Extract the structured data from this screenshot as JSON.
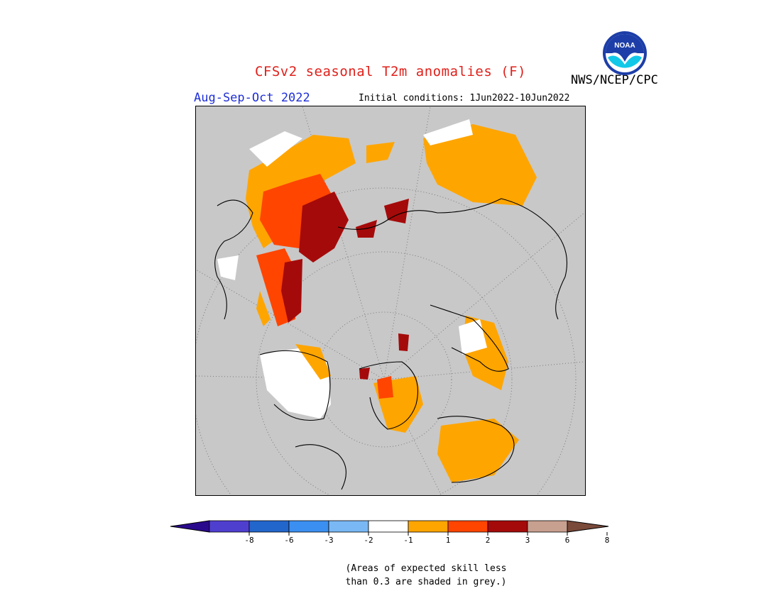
{
  "header": {
    "title": "CFSv2 seasonal T2m anomalies (F)",
    "season": "Aug-Sep-Oct 2022",
    "initial_conditions": "Initial conditions: 1Jun2022-10Jun2022",
    "agency": "NWS/NCEP/CPC",
    "logo_text": "NOAA"
  },
  "colorbar": {
    "colors": [
      "#2a0a8c",
      "#4f3fcf",
      "#2266cc",
      "#3b8ff0",
      "#7ab8f5",
      "#ffffff",
      "#ffa500",
      "#ff4500",
      "#a50a0a",
      "#c8a090",
      "#7a4a3a"
    ],
    "labels": [
      "-8",
      "-6",
      "-3",
      "-2",
      "-1",
      "1",
      "2",
      "3",
      "6",
      "8"
    ]
  },
  "footnote": {
    "line1": "(Areas of expected skill less",
    "line2": "than 0.3 are shaded in grey.)"
  },
  "legend_colors": {
    "grey_low_skill": "#c8c8c8",
    "neutral": "#ffffff",
    "warm_1_2": "#ffa500",
    "warm_2_3": "#ff4500",
    "warm_3_6": "#a50a0a"
  }
}
